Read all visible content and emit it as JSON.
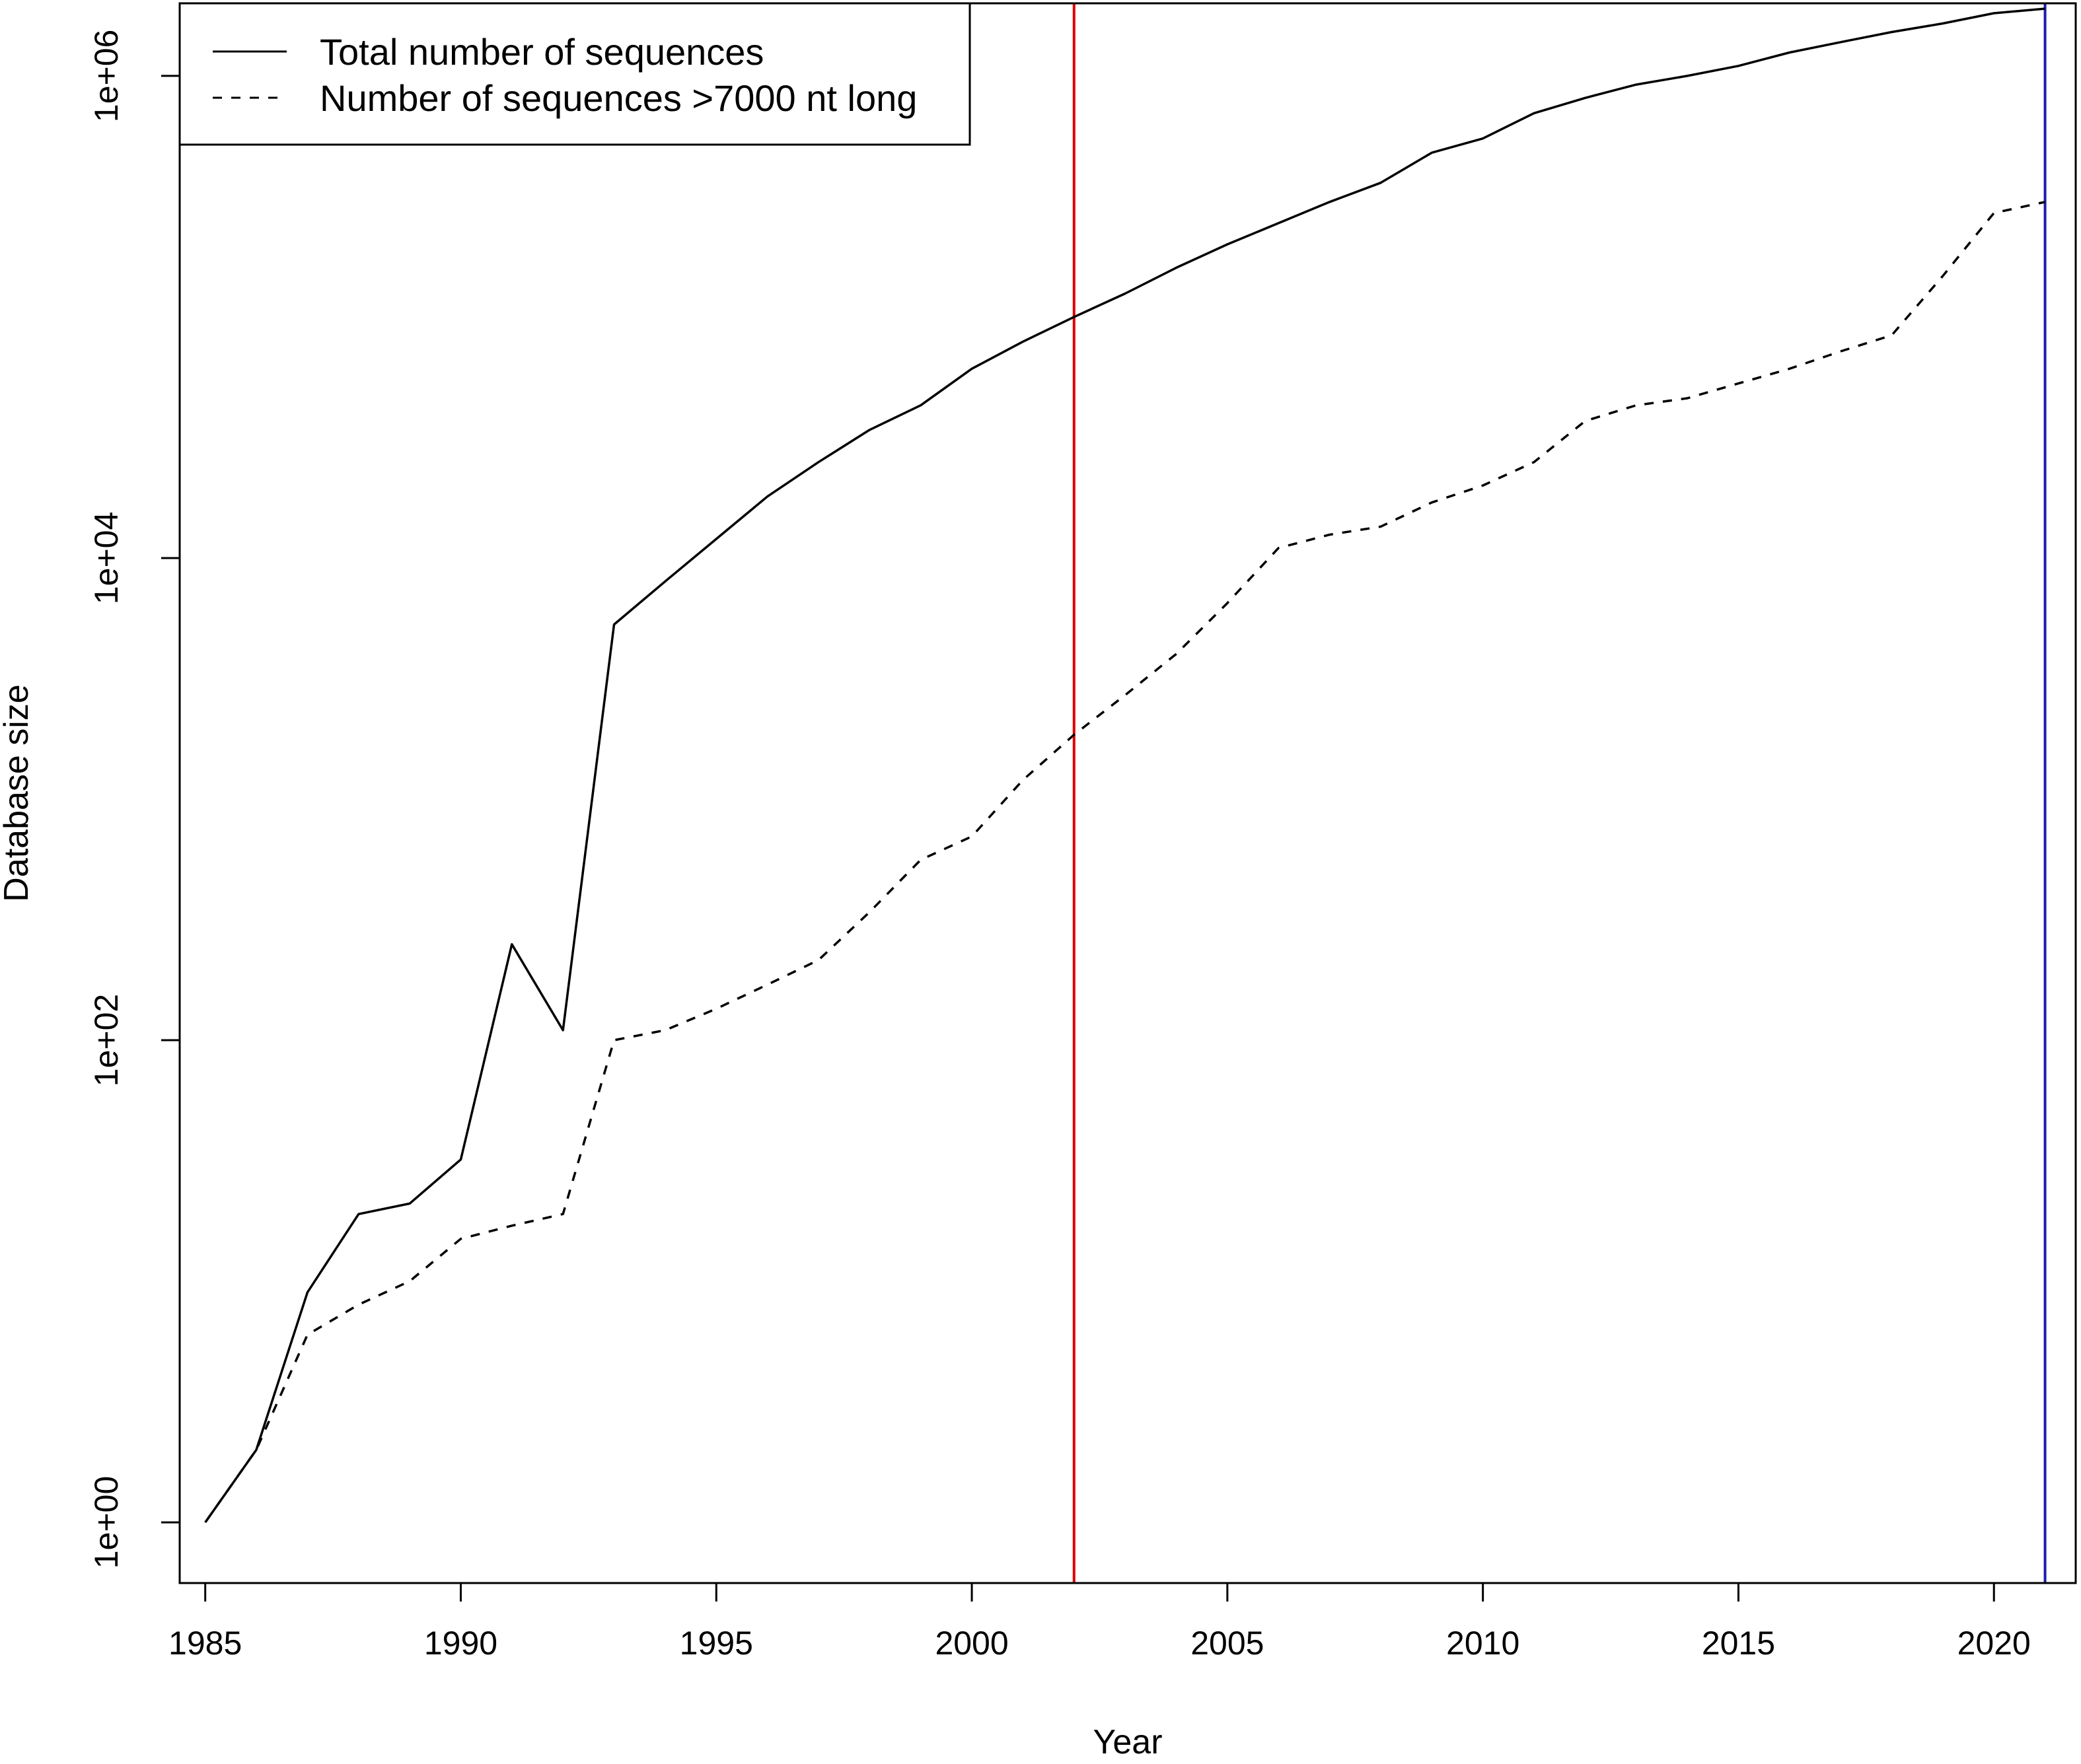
{
  "chart_data": {
    "type": "line",
    "xlabel": "Year",
    "ylabel": "Database size",
    "xlim": [
      1984.5,
      2021.6
    ],
    "y_scale": "log",
    "ylim": [
      0.56,
      2000000
    ],
    "x_ticks": [
      1985,
      1990,
      1995,
      2000,
      2005,
      2010,
      2015,
      2020
    ],
    "x_tick_labels": [
      "1985",
      "1990",
      "1995",
      "2000",
      "2005",
      "2010",
      "2015",
      "2020"
    ],
    "y_ticks": [
      1,
      100,
      10000,
      1000000
    ],
    "y_tick_labels": [
      "1e+00",
      "1e+02",
      "1e+04",
      "1e+06"
    ],
    "legend_position": "top-left",
    "x": [
      1985,
      1986,
      1987,
      1988,
      1989,
      1990,
      1991,
      1992,
      1993,
      1994,
      1995,
      1996,
      1997,
      1998,
      1999,
      2000,
      2001,
      2002,
      2003,
      2004,
      2005,
      2006,
      2007,
      2008,
      2009,
      2010,
      2011,
      2012,
      2013,
      2014,
      2015,
      2016,
      2017,
      2018,
      2019,
      2020,
      2021
    ],
    "series": [
      {
        "name": "Total number of sequences",
        "line_style": "solid",
        "color": "#000000",
        "values": [
          1,
          2,
          9,
          19,
          21,
          32,
          250,
          110,
          5300,
          8000,
          12000,
          18000,
          25000,
          34000,
          43000,
          61000,
          79000,
          100000,
          125000,
          160000,
          200000,
          245000,
          300000,
          360000,
          480000,
          550000,
          700000,
          810000,
          920000,
          1000000,
          1100000,
          1250000,
          1380000,
          1520000,
          1650000,
          1820000,
          1900000
        ]
      },
      {
        "name": "Number of sequences >7000 nt long",
        "line_style": "dashed",
        "color": "#000000",
        "values": [
          1,
          2,
          6,
          8,
          10,
          15,
          17,
          19,
          100,
          110,
          135,
          170,
          215,
          340,
          560,
          700,
          1200,
          1850,
          2700,
          4000,
          6500,
          11000,
          12500,
          13500,
          17000,
          20000,
          25000,
          37000,
          43000,
          46000,
          53000,
          61000,
          72000,
          84000,
          148000,
          270000,
          300000
        ]
      }
    ],
    "vlines": [
      {
        "x": 2002,
        "color": "#e00000"
      },
      {
        "x": 2021,
        "color": "#1c1cb0"
      }
    ]
  }
}
